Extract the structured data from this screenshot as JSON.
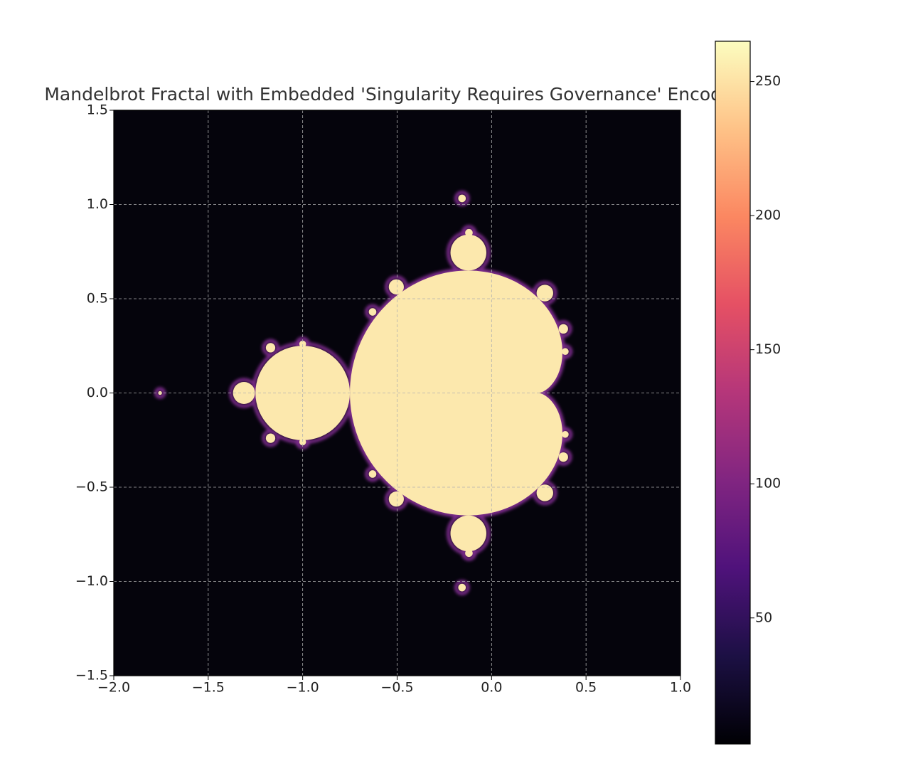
{
  "chart_data": {
    "type": "image",
    "title": "Mandelbrot Fractal with Embedded 'Singularity Requires Governance' Encoding",
    "xlim": [
      -2.0,
      1.0
    ],
    "ylim": [
      -1.5,
      1.5
    ],
    "xticks": [
      {
        "value": -2.0,
        "label": "−2.0"
      },
      {
        "value": -1.5,
        "label": "−1.5"
      },
      {
        "value": -1.0,
        "label": "−1.0"
      },
      {
        "value": -0.5,
        "label": "−0.5"
      },
      {
        "value": 0.0,
        "label": "0.0"
      },
      {
        "value": 0.5,
        "label": "0.5"
      },
      {
        "value": 1.0,
        "label": "1.0"
      }
    ],
    "yticks": [
      {
        "value": -1.5,
        "label": "−1.5"
      },
      {
        "value": -1.0,
        "label": "−1.0"
      },
      {
        "value": -0.5,
        "label": "−0.5"
      },
      {
        "value": 0.0,
        "label": "0.0"
      },
      {
        "value": 0.5,
        "label": "0.5"
      },
      {
        "value": 1.0,
        "label": "1.0"
      },
      {
        "value": 1.5,
        "label": "1.5"
      }
    ],
    "grid": true,
    "colormap": "magma",
    "clim": [
      3,
      265
    ],
    "cticks": [
      50,
      100,
      150,
      200,
      250
    ]
  }
}
